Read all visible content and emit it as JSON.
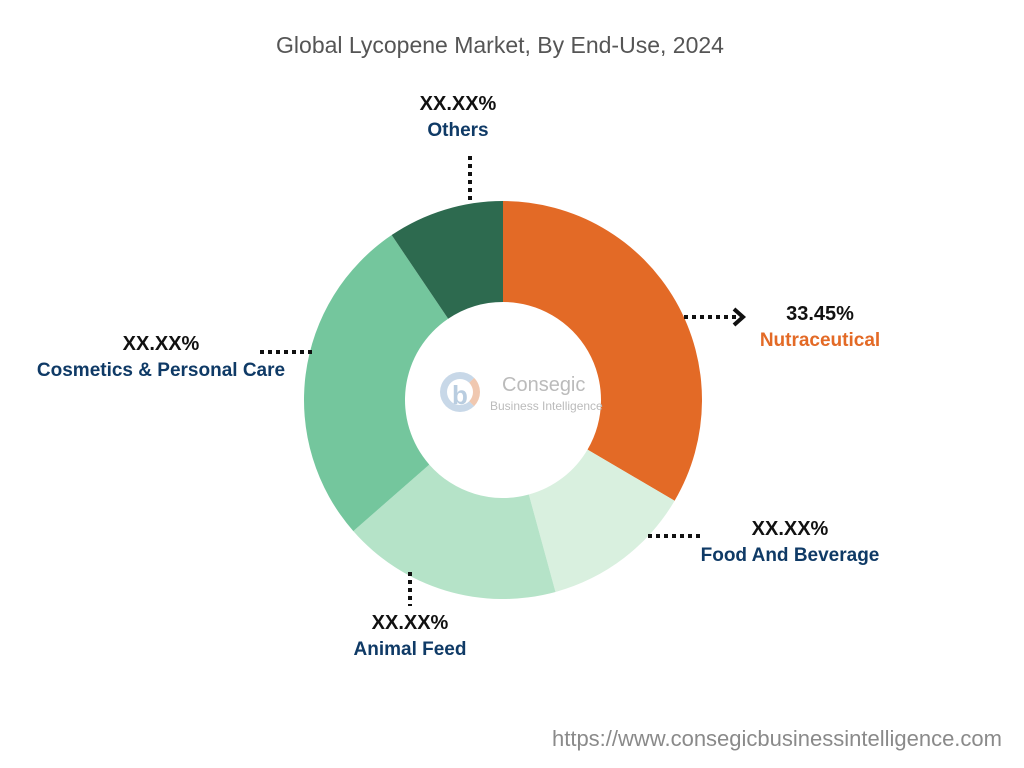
{
  "chart_data": {
    "type": "pie",
    "variant": "donut",
    "title": "Global Lycopene Market, By End-Use, 2024",
    "categories": [
      "Nutraceutical",
      "Food And Beverage",
      "Animal Feed",
      "Cosmetics & Personal Care",
      "Others"
    ],
    "values": [
      33.45,
      12.3,
      17.8,
      27.0,
      9.45
    ],
    "data_labels": [
      "33.45%",
      "XX.XX%",
      "XX.XX%",
      "XX.XX%",
      "XX.XX%"
    ],
    "colors": [
      "#e36a26",
      "#d9f0df",
      "#b5e3c8",
      "#74c69d",
      "#2d6a4f"
    ],
    "label_colors": [
      "#e36a26",
      "#0f3a66",
      "#0f3a66",
      "#0f3a66",
      "#0f3a66"
    ]
  },
  "logo": {
    "name": "Consegic",
    "tagline": "Business Intelligence"
  },
  "source_url": "https://www.consegicbusinessintelligence.com"
}
